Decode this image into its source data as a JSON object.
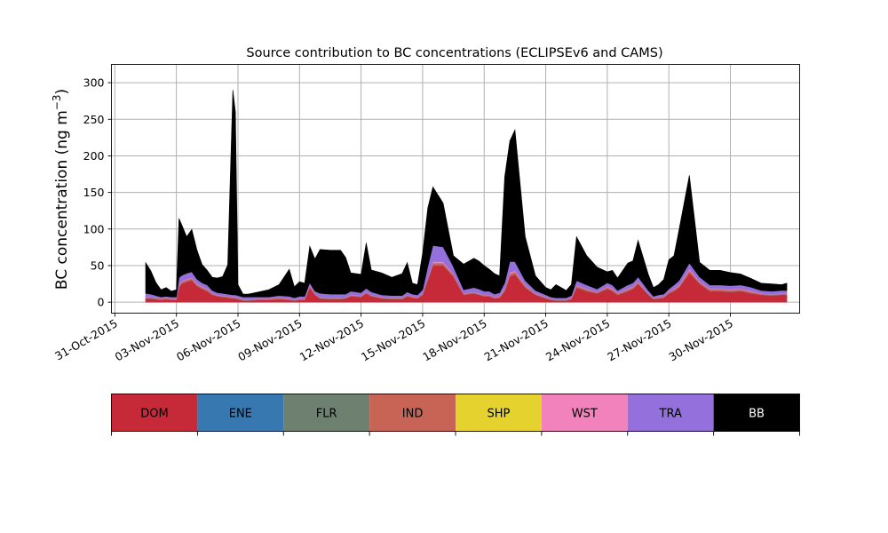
{
  "chart_data": {
    "type": "area",
    "stacked": true,
    "title": "Source contribution to BC concentrations (ECLIPSEv6 and CAMS)",
    "ylabel_main": "BC concentration (ng m",
    "ylabel_sup": "−3",
    "ylabel_close": ")",
    "xlabel": "",
    "grid": true,
    "ylim": [
      -15,
      325
    ],
    "xlim": [
      "2015-10-30T20:00",
      "2015-12-03T09:00"
    ],
    "y_ticks": [
      0,
      50,
      100,
      150,
      200,
      250,
      300
    ],
    "x_ticks": [
      {
        "date": "2015-10-31",
        "label": "31-Oct-2015"
      },
      {
        "date": "2015-11-03",
        "label": "03-Nov-2015"
      },
      {
        "date": "2015-11-06",
        "label": "06-Nov-2015"
      },
      {
        "date": "2015-11-09",
        "label": "09-Nov-2015"
      },
      {
        "date": "2015-11-12",
        "label": "12-Nov-2015"
      },
      {
        "date": "2015-11-15",
        "label": "15-Nov-2015"
      },
      {
        "date": "2015-11-18",
        "label": "18-Nov-2015"
      },
      {
        "date": "2015-11-21",
        "label": "21-Nov-2015"
      },
      {
        "date": "2015-11-24",
        "label": "24-Nov-2015"
      },
      {
        "date": "2015-11-27",
        "label": "27-Nov-2015"
      },
      {
        "date": "2015-11-30",
        "label": "30-Nov-2015"
      }
    ],
    "legend_position": "bottom",
    "legend": [
      {
        "name": "DOM",
        "color": "#c62a38",
        "text_color": "#000000"
      },
      {
        "name": "ENE",
        "color": "#3778b0",
        "text_color": "#000000"
      },
      {
        "name": "FLR",
        "color": "#6e8070",
        "text_color": "#000000"
      },
      {
        "name": "IND",
        "color": "#c86455",
        "text_color": "#000000"
      },
      {
        "name": "SHP",
        "color": "#e6d22e",
        "text_color": "#000000"
      },
      {
        "name": "WST",
        "color": "#f282bc",
        "text_color": "#000000"
      },
      {
        "name": "TRA",
        "color": "#9370db",
        "text_color": "#000000"
      },
      {
        "name": "BB",
        "color": "#000000",
        "text_color": "#ffffff"
      }
    ],
    "x": [
      "2015-11-01T12:00",
      "2015-11-01T18:00",
      "2015-11-02T00:00",
      "2015-11-02T06:00",
      "2015-11-02T12:00",
      "2015-11-02T18:00",
      "2015-11-03T00:00",
      "2015-11-03T03:00",
      "2015-11-03T06:00",
      "2015-11-03T12:00",
      "2015-11-03T18:00",
      "2015-11-04T00:00",
      "2015-11-04T06:00",
      "2015-11-04T12:00",
      "2015-11-04T18:00",
      "2015-11-05T00:00",
      "2015-11-05T06:00",
      "2015-11-05T12:00",
      "2015-11-05T18:00",
      "2015-11-05T21:00",
      "2015-11-06T00:00",
      "2015-11-06T06:00",
      "2015-11-06T12:00",
      "2015-11-07T00:00",
      "2015-11-07T12:00",
      "2015-11-08T00:00",
      "2015-11-08T12:00",
      "2015-11-08T18:00",
      "2015-11-09T00:00",
      "2015-11-09T06:00",
      "2015-11-09T12:00",
      "2015-11-09T18:00",
      "2015-11-10T00:00",
      "2015-11-10T12:00",
      "2015-11-11T00:00",
      "2015-11-11T06:00",
      "2015-11-11T12:00",
      "2015-11-12T00:00",
      "2015-11-12T06:00",
      "2015-11-12T12:00",
      "2015-11-13T00:00",
      "2015-11-13T12:00",
      "2015-11-14T00:00",
      "2015-11-14T06:00",
      "2015-11-14T12:00",
      "2015-11-14T18:00",
      "2015-11-15T00:00",
      "2015-11-15T06:00",
      "2015-11-15T12:00",
      "2015-11-16T00:00",
      "2015-11-16T12:00",
      "2015-11-17T00:00",
      "2015-11-17T12:00",
      "2015-11-17T18:00",
      "2015-11-18T00:00",
      "2015-11-18T06:00",
      "2015-11-18T12:00",
      "2015-11-18T18:00",
      "2015-11-19T00:00",
      "2015-11-19T06:00",
      "2015-11-19T12:00",
      "2015-11-20T00:00",
      "2015-11-20T12:00",
      "2015-11-21T00:00",
      "2015-11-21T06:00",
      "2015-11-21T12:00",
      "2015-11-22T00:00",
      "2015-11-22T06:00",
      "2015-11-22T12:00",
      "2015-11-23T00:00",
      "2015-11-23T12:00",
      "2015-11-24T00:00",
      "2015-11-24T06:00",
      "2015-11-24T12:00",
      "2015-11-25T00:00",
      "2015-11-25T06:00",
      "2015-11-25T12:00",
      "2015-11-26T00:00",
      "2015-11-26T06:00",
      "2015-11-26T12:00",
      "2015-11-26T18:00",
      "2015-11-27T00:00",
      "2015-11-27T06:00",
      "2015-11-27T12:00",
      "2015-11-28T00:00",
      "2015-11-28T12:00",
      "2015-11-29T00:00",
      "2015-11-29T12:00",
      "2015-11-30T00:00",
      "2015-11-30T12:00",
      "2015-12-01T00:00",
      "2015-12-01T12:00",
      "2015-12-02T00:00",
      "2015-12-02T12:00",
      "2015-12-02T18:00"
    ],
    "series": [
      {
        "name": "DOM",
        "color": "#c62a38",
        "values": [
          5,
          5,
          4,
          3,
          4,
          3,
          3,
          20,
          25,
          28,
          30,
          22,
          18,
          15,
          10,
          8,
          7,
          6,
          5,
          5,
          4,
          2,
          2,
          3,
          3,
          4,
          3,
          2,
          3,
          3,
          20,
          10,
          5,
          4,
          4,
          5,
          8,
          7,
          12,
          8,
          5,
          4,
          4,
          8,
          6,
          5,
          10,
          30,
          50,
          50,
          35,
          10,
          12,
          10,
          8,
          8,
          5,
          6,
          15,
          35,
          38,
          20,
          10,
          5,
          3,
          2,
          2,
          4,
          20,
          15,
          12,
          18,
          15,
          10,
          15,
          18,
          25,
          10,
          4,
          5,
          6,
          12,
          15,
          20,
          40,
          25,
          15,
          15,
          14,
          15,
          12,
          10,
          9,
          10,
          10
        ]
      },
      {
        "name": "FLR",
        "color": "#6e8070",
        "values": [
          0.5,
          0.5,
          0.5,
          0.5,
          0.5,
          0.5,
          0.5,
          0.5,
          0.5,
          0.5,
          0.5,
          0.5,
          0.5,
          0.5,
          0.5,
          0.5,
          0.5,
          0.5,
          0.5,
          0.5,
          0.5,
          0.5,
          0.5,
          0.5,
          0.5,
          0.5,
          0.5,
          0.5,
          0.5,
          0.5,
          0.5,
          0.5,
          0.5,
          0.5,
          0.5,
          0.5,
          0.5,
          0.5,
          0.5,
          0.5,
          0.5,
          0.5,
          0.5,
          0.5,
          0.5,
          0.5,
          0.5,
          0.5,
          0.5,
          0.5,
          0.5,
          0.5,
          0.5,
          0.5,
          0.5,
          0.5,
          0.5,
          0.5,
          0.5,
          0.5,
          0.5,
          0.5,
          0.5,
          0.5,
          0.5,
          0.5,
          0.5,
          0.5,
          0.5,
          0.5,
          0.5,
          0.5,
          0.5,
          0.5,
          0.5,
          0.5,
          0.5,
          0.5,
          0.5,
          0.5,
          0.5,
          0.5,
          0.5,
          0.5,
          0.5,
          0.5,
          0.5,
          0.5,
          0.5,
          0.5,
          0.5,
          0.5,
          0.5,
          0.5,
          0.5
        ]
      },
      {
        "name": "IND",
        "color": "#c86455",
        "values": [
          1,
          1,
          1,
          1,
          1,
          1,
          1,
          2,
          2,
          2,
          2,
          2,
          2,
          2,
          1,
          1,
          1,
          1,
          1,
          1,
          1,
          1,
          1,
          1,
          1,
          1,
          1,
          1,
          1,
          1,
          2,
          1,
          1,
          1,
          1,
          1,
          1,
          1,
          1,
          1,
          1,
          1,
          1,
          1,
          1,
          1,
          1,
          2,
          3,
          3,
          2,
          1,
          1,
          1,
          1,
          1,
          1,
          1,
          2,
          3,
          3,
          2,
          1,
          1,
          1,
          1,
          1,
          1,
          2,
          2,
          1,
          2,
          2,
          1,
          2,
          2,
          2,
          1,
          1,
          1,
          1,
          1,
          2,
          2,
          3,
          2,
          2,
          2,
          2,
          2,
          2,
          1,
          1,
          1,
          1
        ]
      },
      {
        "name": "WST",
        "color": "#f282bc",
        "values": [
          0.5,
          0.5,
          0.5,
          0.5,
          0.5,
          0.5,
          0.5,
          1,
          1,
          1,
          1,
          1,
          1,
          1,
          0.5,
          0.5,
          0.5,
          0.5,
          0.5,
          0.5,
          0.5,
          0.5,
          0.5,
          0.5,
          0.5,
          0.5,
          0.5,
          0.5,
          0.5,
          0.5,
          1,
          0.5,
          0.5,
          0.5,
          0.5,
          0.5,
          0.5,
          0.5,
          0.5,
          0.5,
          0.5,
          0.5,
          0.5,
          0.5,
          0.5,
          0.5,
          0.5,
          1,
          2,
          2,
          1,
          0.5,
          0.5,
          0.5,
          0.5,
          0.5,
          0.5,
          0.5,
          1,
          2,
          2,
          1,
          0.5,
          0.5,
          0.5,
          0.5,
          0.5,
          0.5,
          1,
          1,
          0.5,
          1,
          1,
          0.5,
          1,
          1,
          1,
          0.5,
          0.5,
          0.5,
          0.5,
          0.5,
          1,
          1,
          2,
          1,
          1,
          1,
          1,
          1,
          1,
          0.5,
          0.5,
          0.5,
          0.5
        ]
      },
      {
        "name": "TRA",
        "color": "#9370db",
        "values": [
          5,
          4,
          3,
          2,
          2,
          2,
          2,
          10,
          8,
          8,
          8,
          6,
          5,
          5,
          4,
          3,
          3,
          3,
          3,
          3,
          3,
          3,
          3,
          2,
          2,
          3,
          3,
          2,
          3,
          3,
          3,
          3,
          5,
          5,
          5,
          4,
          5,
          4,
          5,
          4,
          3,
          3,
          3,
          4,
          3,
          3,
          5,
          15,
          22,
          20,
          10,
          5,
          6,
          6,
          5,
          5,
          4,
          5,
          8,
          15,
          12,
          6,
          4,
          3,
          2,
          2,
          2,
          3,
          6,
          5,
          4,
          5,
          5,
          4,
          5,
          5,
          6,
          4,
          2,
          3,
          3,
          4,
          5,
          6,
          8,
          6,
          5,
          5,
          5,
          5,
          5,
          4,
          4,
          4,
          4
        ]
      },
      {
        "name": "BB",
        "color": "#000000",
        "values": [
          42,
          32,
          18,
          10,
          12,
          8,
          10,
          81,
          70,
          50,
          58,
          40,
          25,
          20,
          18,
          20,
          23,
          40,
          280,
          250,
          15,
          4,
          4,
          7,
          10,
          15,
          37,
          15,
          20,
          18,
          50,
          44,
          60,
          60,
          60,
          50,
          25,
          25,
          62,
          30,
          30,
          25,
          30,
          40,
          15,
          14,
          50,
          80,
          80,
          60,
          15,
          35,
          40,
          38,
          35,
          30,
          28,
          23,
          145,
          165,
          180,
          60,
          20,
          10,
          10,
          18,
          10,
          15,
          60,
          40,
          30,
          15,
          20,
          17,
          30,
          30,
          50,
          22,
          12,
          14,
          20,
          40,
          40,
          70,
          120,
          20,
          20,
          20,
          18,
          15,
          12,
          10,
          10,
          8,
          10
        ]
      }
    ]
  }
}
